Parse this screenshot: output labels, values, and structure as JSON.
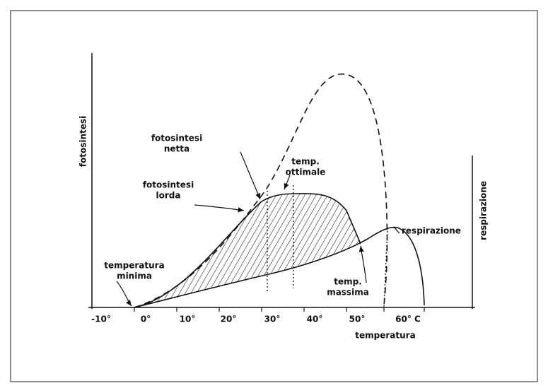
{
  "axes": {
    "y_label": "fotosintesi",
    "y2_label": "respirazione",
    "x_label": "temperatura",
    "x_ticks": [
      "-10°",
      "0°",
      "10°",
      "20°",
      "30°",
      "40°",
      "50°",
      "60° C"
    ]
  },
  "labels": {
    "fotosintesi_netta": [
      "fotosintesi",
      "netta"
    ],
    "temp_ottimale": [
      "temp.",
      "ottimale"
    ],
    "fotosintesi_lorda": [
      "fotosintesi",
      "lorda"
    ],
    "temperatura_minima": [
      "temperatura",
      "minima"
    ],
    "temp_massima": [
      "temp.",
      "massima"
    ],
    "respirazione": "respirazione"
  }
}
